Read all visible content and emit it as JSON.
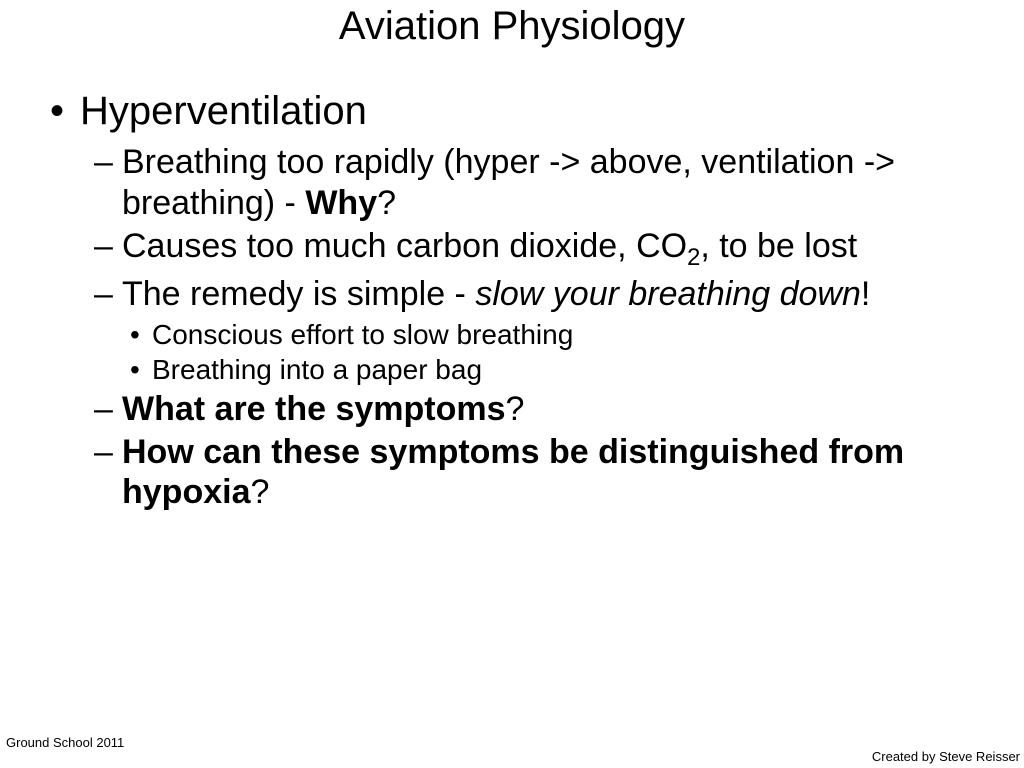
{
  "title": "Aviation Physiology",
  "heading": "Hyperventilation",
  "sub1_pre": "Breathing too rapidly (hyper -> above, ventilation -> breathing)  - ",
  "sub1_bold": "Why",
  "sub1_post": "?",
  "sub2_pre": "Causes too much carbon dioxide, CO",
  "sub2_sub": "2",
  "sub2_post": ", to be lost",
  "sub3_pre": "The remedy is simple - ",
  "sub3_italic": "slow your breathing down",
  "sub3_post": "!",
  "subsub1": "Conscious effort to slow breathing",
  "subsub2": "Breathing into a paper bag",
  "sub4_bold": "What are the symptoms",
  "sub4_post": "?",
  "sub5_bold": "How can these symptoms be distinguished from hypoxia",
  "sub5_post": "?",
  "footer_left": "Ground School 2011",
  "footer_right": "Created by Steve Reisser"
}
